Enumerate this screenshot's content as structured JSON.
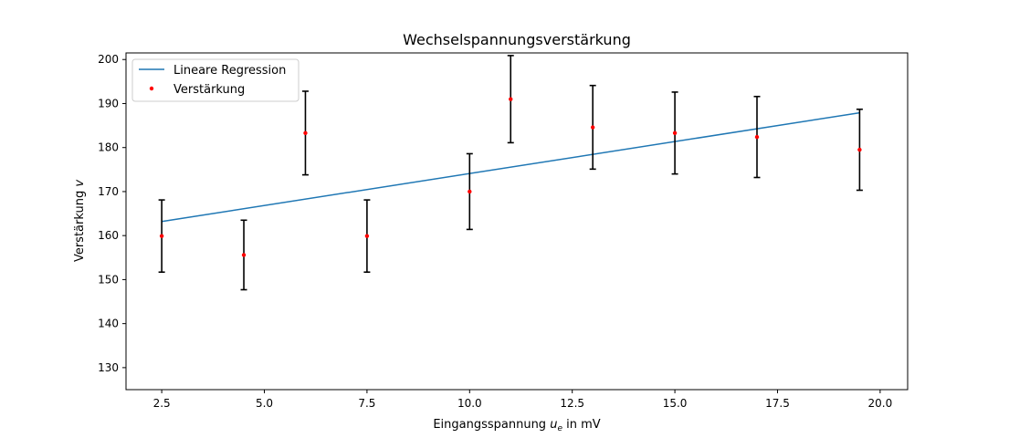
{
  "chart_data": {
    "type": "scatter",
    "title": "Wechselspannungsverstärkung",
    "xlabel": {
      "main": "Eingangsspannung ",
      "sym": "u",
      "sub": "e",
      "unit": " in mV"
    },
    "ylabel": {
      "main": "Verstärkung ",
      "sym": "v"
    },
    "xlim": [
      1.63,
      20.67
    ],
    "ylim": [
      125,
      201.5
    ],
    "xticks": [
      2.5,
      5.0,
      7.5,
      10.0,
      12.5,
      15.0,
      17.5,
      20.0
    ],
    "xtick_labels": [
      "2.5",
      "5.0",
      "7.5",
      "10.0",
      "12.5",
      "15.0",
      "17.5",
      "20.0"
    ],
    "yticks": [
      130,
      140,
      150,
      160,
      170,
      180,
      190,
      200
    ],
    "ytick_labels": [
      "130",
      "140",
      "150",
      "160",
      "170",
      "180",
      "190",
      "200"
    ],
    "grid": false,
    "legend_position": "top-left",
    "series": [
      {
        "name": "Lineare Regression",
        "kind": "line",
        "color": "#1f77b4",
        "x": [
          2.5,
          19.5
        ],
        "y": [
          163.2,
          187.9
        ]
      },
      {
        "name": "Verstärkung",
        "kind": "errorbar",
        "color": "#ff0000",
        "error_color": "#000000",
        "x": [
          2.5,
          4.5,
          6.0,
          7.5,
          10.0,
          11.0,
          13.0,
          15.0,
          17.0,
          19.5
        ],
        "y": [
          159.9,
          155.6,
          183.3,
          159.9,
          170.0,
          191.0,
          184.6,
          183.3,
          182.4,
          179.5
        ],
        "yerr": [
          8.2,
          7.9,
          9.5,
          8.2,
          8.6,
          9.9,
          9.5,
          9.3,
          9.2,
          9.2
        ]
      }
    ]
  }
}
